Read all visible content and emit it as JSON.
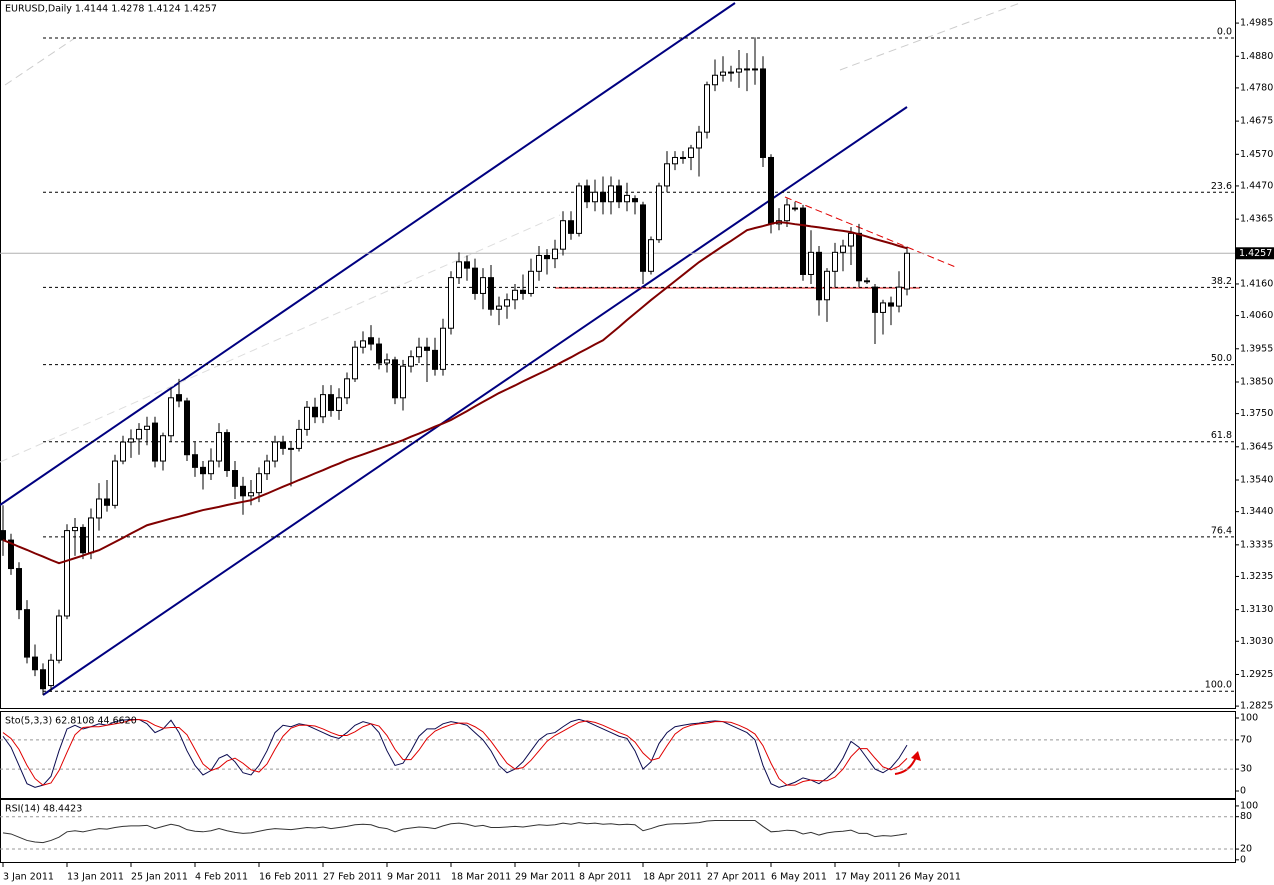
{
  "chart_data": [
    {
      "type": "candlestick",
      "title": "EURUSD,Daily  1.4144 1.4278 1.4124 1.4257",
      "categories": [
        "3 Jan 2011",
        null,
        null,
        null,
        null,
        null,
        null,
        null,
        "13 Jan 2011",
        null,
        null,
        null,
        null,
        null,
        null,
        null,
        "25 Jan 2011",
        null,
        null,
        null,
        null,
        null,
        null,
        null,
        "4 Feb 2011",
        null,
        null,
        null,
        null,
        null,
        null,
        null,
        "16 Feb 2011",
        null,
        null,
        null,
        null,
        null,
        null,
        null,
        "27 Feb 2011",
        null,
        null,
        null,
        null,
        null,
        null,
        null,
        "9 Mar 2011",
        null,
        null,
        null,
        null,
        null,
        null,
        null,
        "18 Mar 2011",
        null,
        null,
        null,
        null,
        null,
        null,
        null,
        "29 Mar 2011",
        null,
        null,
        null,
        null,
        null,
        null,
        null,
        "8 Apr 2011",
        null,
        null,
        null,
        null,
        null,
        null,
        null,
        "18 Apr 2011",
        null,
        null,
        null,
        null,
        null,
        null,
        null,
        "27 Apr 2011",
        null,
        null,
        null,
        null,
        null,
        null,
        null,
        "6 May 2011",
        null,
        null,
        null,
        null,
        null,
        null,
        null,
        "17 May 2011",
        null,
        null,
        null,
        null,
        null,
        null,
        null,
        "26 May 2011",
        null
      ],
      "open": [
        1.338,
        1.335,
        1.326,
        1.313,
        1.298,
        1.294,
        1.289,
        1.297,
        1.311,
        1.338,
        1.339,
        1.331,
        1.342,
        1.348,
        1.346,
        1.36,
        1.366,
        1.367,
        1.37,
        1.372,
        1.36,
        1.368,
        1.381,
        1.379,
        1.362,
        1.358,
        1.356,
        1.36,
        1.369,
        1.357,
        1.352,
        1.349,
        1.35,
        1.356,
        1.36,
        1.366,
        1.364,
        1.364,
        1.37,
        1.377,
        1.374,
        1.381,
        1.376,
        1.38,
        1.386,
        1.396,
        1.399,
        1.397,
        1.391,
        1.392,
        1.38,
        1.39,
        1.393,
        1.396,
        1.395,
        1.389,
        1.402,
        1.418,
        1.423,
        1.421,
        1.413,
        1.418,
        1.408,
        1.409,
        1.411,
        1.414,
        1.413,
        1.42,
        1.425,
        1.424,
        1.427,
        1.436,
        1.432,
        1.447,
        1.442,
        1.445,
        1.442,
        1.447,
        1.442,
        1.443,
        1.441,
        1.42,
        1.43,
        1.447,
        1.454,
        1.456,
        1.456,
        1.459,
        1.464,
        1.479,
        1.482,
        1.483,
        1.483,
        1.484,
        1.484,
        1.484,
        1.456,
        1.435,
        1.436,
        1.44,
        1.44,
        1.419,
        1.426,
        1.411,
        1.42,
        1.426,
        1.428,
        1.432,
        1.417,
        1.415,
        1.407,
        1.41,
        1.409,
        1.4144
      ],
      "high": [
        1.346,
        1.337,
        1.328,
        1.316,
        1.302,
        1.296,
        1.299,
        1.313,
        1.34,
        1.342,
        1.34,
        1.345,
        1.353,
        1.354,
        1.362,
        1.368,
        1.37,
        1.372,
        1.374,
        1.374,
        1.369,
        1.383,
        1.386,
        1.38,
        1.366,
        1.36,
        1.364,
        1.372,
        1.37,
        1.36,
        1.355,
        1.354,
        1.358,
        1.362,
        1.368,
        1.368,
        1.366,
        1.373,
        1.379,
        1.38,
        1.384,
        1.384,
        1.383,
        1.388,
        1.398,
        1.401,
        1.403,
        1.399,
        1.394,
        1.393,
        1.392,
        1.395,
        1.399,
        1.399,
        1.399,
        1.405,
        1.42,
        1.426,
        1.425,
        1.424,
        1.421,
        1.422,
        1.412,
        1.413,
        1.416,
        1.419,
        1.424,
        1.428,
        1.427,
        1.43,
        1.439,
        1.439,
        1.448,
        1.449,
        1.449,
        1.45,
        1.45,
        1.449,
        1.448,
        1.444,
        1.442,
        1.431,
        1.448,
        1.458,
        1.458,
        1.458,
        1.46,
        1.466,
        1.48,
        1.487,
        1.488,
        1.485,
        1.49,
        1.489,
        1.494,
        1.488,
        1.457,
        1.44,
        1.443,
        1.442,
        1.441,
        1.433,
        1.428,
        1.421,
        1.429,
        1.43,
        1.434,
        1.435,
        1.418,
        1.416,
        1.411,
        1.412,
        1.42,
        1.4278
      ],
      "low": [
        1.33,
        1.324,
        1.31,
        1.296,
        1.292,
        1.286,
        1.287,
        1.296,
        1.31,
        1.33,
        1.329,
        1.329,
        1.338,
        1.344,
        1.345,
        1.359,
        1.361,
        1.362,
        1.365,
        1.358,
        1.357,
        1.366,
        1.377,
        1.36,
        1.355,
        1.351,
        1.354,
        1.358,
        1.355,
        1.348,
        1.343,
        1.346,
        1.347,
        1.354,
        1.358,
        1.362,
        1.352,
        1.363,
        1.368,
        1.372,
        1.372,
        1.374,
        1.373,
        1.378,
        1.385,
        1.394,
        1.395,
        1.389,
        1.388,
        1.378,
        1.376,
        1.388,
        1.391,
        1.385,
        1.387,
        1.387,
        1.4,
        1.416,
        1.417,
        1.411,
        1.408,
        1.406,
        1.403,
        1.405,
        1.408,
        1.411,
        1.412,
        1.417,
        1.419,
        1.421,
        1.425,
        1.43,
        1.431,
        1.44,
        1.439,
        1.438,
        1.438,
        1.44,
        1.439,
        1.438,
        1.416,
        1.419,
        1.429,
        1.445,
        1.452,
        1.454,
        1.452,
        1.45,
        1.462,
        1.477,
        1.48,
        1.48,
        1.478,
        1.477,
        1.479,
        1.453,
        1.432,
        1.433,
        1.434,
        1.439,
        1.417,
        1.416,
        1.406,
        1.404,
        1.415,
        1.42,
        1.422,
        1.415,
        1.416,
        1.397,
        1.4,
        1.403,
        1.407,
        1.4124
      ],
      "close": [
        1.335,
        1.326,
        1.313,
        1.298,
        1.294,
        1.288,
        1.297,
        1.311,
        1.338,
        1.339,
        1.331,
        1.342,
        1.348,
        1.346,
        1.36,
        1.366,
        1.367,
        1.37,
        1.371,
        1.36,
        1.368,
        1.38,
        1.379,
        1.362,
        1.358,
        1.356,
        1.36,
        1.369,
        1.357,
        1.352,
        1.349,
        1.35,
        1.356,
        1.36,
        1.366,
        1.364,
        1.364,
        1.37,
        1.377,
        1.374,
        1.381,
        1.376,
        1.38,
        1.386,
        1.396,
        1.398,
        1.397,
        1.391,
        1.392,
        1.38,
        1.39,
        1.393,
        1.396,
        1.395,
        1.389,
        1.402,
        1.418,
        1.423,
        1.421,
        1.413,
        1.418,
        1.408,
        1.409,
        1.411,
        1.414,
        1.413,
        1.42,
        1.425,
        1.424,
        1.427,
        1.436,
        1.432,
        1.447,
        1.442,
        1.445,
        1.442,
        1.447,
        1.442,
        1.444,
        1.442,
        1.42,
        1.43,
        1.447,
        1.454,
        1.456,
        1.456,
        1.459,
        1.464,
        1.479,
        1.482,
        1.483,
        1.483,
        1.484,
        1.484,
        1.484,
        1.456,
        1.435,
        1.436,
        1.441,
        1.44,
        1.419,
        1.426,
        1.411,
        1.42,
        1.426,
        1.428,
        1.432,
        1.417,
        1.417,
        1.407,
        1.41,
        1.409,
        1.415,
        1.4257
      ],
      "up_color": "#ffffff",
      "down_color": "#000000",
      "series": [
        {
          "color": "#800000",
          "values": [
            1.335,
            1.334,
            1.3329,
            1.3319,
            1.3308,
            1.3298,
            1.3287,
            1.3277,
            1.3285,
            1.3293,
            1.3301,
            1.331,
            1.3318,
            1.3331,
            1.3344,
            1.3357,
            1.3371,
            1.3384,
            1.3397,
            1.3404,
            1.3411,
            1.3418,
            1.3424,
            1.3431,
            1.3438,
            1.3445,
            1.345,
            1.3455,
            1.3461,
            1.3466,
            1.3471,
            1.3476,
            1.3487,
            1.3497,
            1.3508,
            1.3519,
            1.3529,
            1.354,
            1.355,
            1.3561,
            1.3571,
            1.3582,
            1.3592,
            1.3603,
            1.3612,
            1.3621,
            1.363,
            1.3639,
            1.3648,
            1.3657,
            1.3666,
            1.3677,
            1.3687,
            1.3698,
            1.3709,
            1.3719,
            1.373,
            1.3744,
            1.3758,
            1.3773,
            1.3787,
            1.3801,
            1.3815,
            1.3827,
            1.3839,
            1.3852,
            1.3864,
            1.3876,
            1.3888,
            1.3901,
            1.3915,
            1.3928,
            1.3942,
            1.3955,
            1.3969,
            1.3982,
            1.4003,
            1.4024,
            1.4046,
            1.4067,
            1.4088,
            1.4109,
            1.4129,
            1.4149,
            1.4169,
            1.4189,
            1.4209,
            1.4229,
            1.4246,
            1.4263,
            1.428,
            1.4296,
            1.4313,
            1.433,
            1.4337,
            1.4343,
            1.435,
            1.4356,
            1.4353,
            1.4349,
            1.4346,
            1.4342,
            1.4339,
            1.4335,
            1.4331,
            1.4328,
            1.4324,
            1.4317,
            1.431,
            1.4302,
            1.4295,
            1.4288,
            1.428,
            1.4273
          ]
        }
      ],
      "ylim": [
        1.2819,
        1.5058
      ],
      "yticks": [
        1.4985,
        {
          "value": 1.488,
          "label": "1.4880"
        },
        {
          "value": 1.478,
          "label": "1.4780"
        },
        1.4675,
        {
          "value": 1.457,
          "label": "1.4570"
        },
        {
          "value": 1.447,
          "label": "1.4470"
        },
        1.4365,
        {
          "value": 1.416,
          "label": "1.4160"
        },
        {
          "value": 1.406,
          "label": "1.4060"
        },
        1.3955,
        {
          "value": 1.385,
          "label": "1.3850"
        },
        {
          "value": 1.375,
          "label": "1.3750"
        },
        1.3645,
        {
          "value": 1.354,
          "label": "1.3540"
        },
        {
          "value": 1.344,
          "label": "1.3440"
        },
        1.3335,
        1.3235,
        {
          "value": 1.313,
          "label": "1.3130"
        },
        {
          "value": 1.303,
          "label": "1.3030"
        },
        1.2925,
        1.2825
      ],
      "last_price": 1.4257,
      "fibonacci": [
        {
          "label": "0.0",
          "price": 1.4938
        },
        {
          "label": "23.6",
          "price": 1.445
        },
        {
          "label": "38.2",
          "price": 1.4149
        },
        {
          "label": "50.0",
          "price": 1.3905
        },
        {
          "label": "61.8",
          "price": 1.3661
        },
        {
          "label": "76.4",
          "price": 1.336
        },
        {
          "label": "100.0",
          "price": 1.2872
        }
      ]
    },
    {
      "type": "line",
      "title": "Sto(5,3,3) 62.8108 44.6620",
      "series": [
        {
          "color": "#0b0b50",
          "values": [
            75,
            60,
            35,
            10,
            5,
            8,
            20,
            55,
            85,
            90,
            85,
            88,
            92,
            90,
            95,
            97,
            98,
            98,
            92,
            80,
            85,
            97,
            80,
            55,
            35,
            22,
            28,
            45,
            50,
            40,
            25,
            22,
            35,
            55,
            80,
            90,
            88,
            92,
            90,
            85,
            80,
            75,
            72,
            80,
            90,
            95,
            92,
            80,
            55,
            35,
            38,
            55,
            75,
            85,
            85,
            92,
            95,
            93,
            90,
            80,
            70,
            55,
            35,
            25,
            30,
            40,
            55,
            70,
            78,
            80,
            88,
            95,
            98,
            95,
            90,
            85,
            80,
            75,
            72,
            55,
            30,
            40,
            65,
            80,
            88,
            90,
            92,
            93,
            95,
            96,
            95,
            90,
            85,
            80,
            70,
            35,
            10,
            5,
            8,
            12,
            18,
            15,
            10,
            18,
            28,
            45,
            68,
            60,
            45,
            30,
            25,
            32,
            45,
            62.8108
          ]
        },
        {
          "color": "#e00000",
          "values": [
            80,
            72,
            57,
            35,
            17,
            8,
            11,
            28,
            53,
            77,
            87,
            88,
            88,
            90,
            92,
            94,
            97,
            98,
            96,
            90,
            86,
            87,
            87,
            77,
            57,
            37,
            28,
            32,
            41,
            45,
            38,
            29,
            26,
            37,
            57,
            75,
            86,
            90,
            90,
            89,
            85,
            80,
            76,
            76,
            81,
            88,
            92,
            89,
            76,
            57,
            43,
            43,
            56,
            72,
            82,
            87,
            91,
            93,
            93,
            88,
            81,
            68,
            53,
            38,
            30,
            32,
            42,
            55,
            68,
            76,
            82,
            88,
            94,
            96,
            94,
            90,
            85,
            80,
            76,
            67,
            52,
            42,
            45,
            62,
            78,
            86,
            90,
            92,
            93,
            95,
            95,
            94,
            90,
            85,
            78,
            62,
            38,
            17,
            8,
            8,
            13,
            15,
            14,
            14,
            19,
            30,
            47,
            58,
            58,
            45,
            33,
            29,
            34,
            44.662
          ]
        }
      ],
      "ylim": [
        -9.6,
        108.2
      ],
      "yticks": [
        100,
        70,
        30,
        0
      ],
      "levels": [
        70,
        30
      ]
    },
    {
      "type": "line",
      "title": "RSI(14) 48.4423",
      "series": [
        {
          "color": "#333333",
          "values": [
            50,
            48,
            42,
            36,
            33,
            32,
            36,
            42,
            52,
            54,
            52,
            55,
            58,
            57,
            60,
            62,
            63,
            63,
            64,
            58,
            62,
            66,
            63,
            56,
            53,
            52,
            54,
            58,
            54,
            51,
            49,
            50,
            53,
            56,
            58,
            57,
            56,
            58,
            60,
            59,
            61,
            58,
            60,
            62,
            65,
            66,
            65,
            60,
            58,
            52,
            57,
            59,
            61,
            60,
            58,
            63,
            67,
            68,
            66,
            62,
            64,
            60,
            60,
            61,
            62,
            61,
            63,
            65,
            64,
            65,
            68,
            66,
            69,
            67,
            68,
            66,
            67,
            65,
            66,
            65,
            54,
            58,
            63,
            66,
            67,
            67,
            68,
            69,
            72,
            73,
            73,
            73,
            73,
            73,
            73,
            62,
            52,
            53,
            55,
            54,
            48,
            51,
            46,
            50,
            52,
            53,
            55,
            49,
            49,
            43,
            45,
            44,
            46,
            48.4423
          ]
        }
      ],
      "ylim": [
        -4,
        111
      ],
      "yticks": [
        100,
        80,
        20,
        0
      ],
      "levels": [
        80,
        20
      ]
    }
  ]
}
